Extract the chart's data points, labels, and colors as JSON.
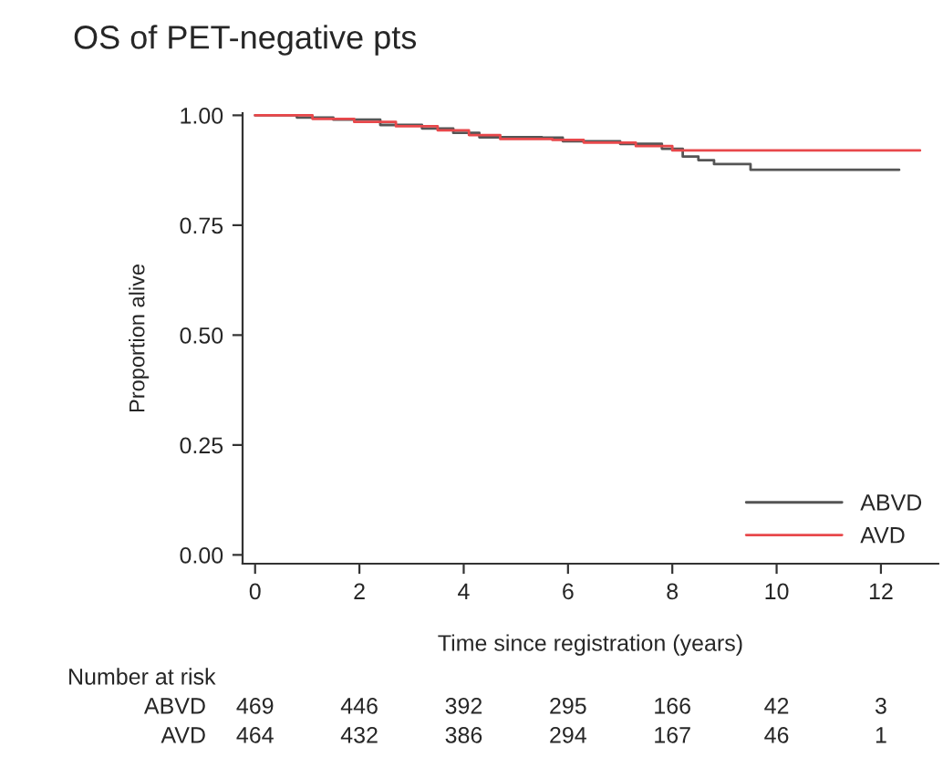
{
  "chart_data": {
    "type": "step",
    "title": "OS of PET-negative pts",
    "xlabel": "Time since registration (years)",
    "ylabel": "Proportion alive",
    "series": [
      {
        "name": "ABVD",
        "color": "#555555",
        "x": [
          0,
          0.8,
          1.5,
          2.4,
          3.2,
          3.8,
          4.3,
          5.5,
          5.9,
          7.0,
          7.8,
          8.2,
          8.5,
          8.8,
          9.5,
          12.35
        ],
        "values": [
          1.0,
          0.995,
          0.99,
          0.978,
          0.97,
          0.96,
          0.95,
          0.949,
          0.941,
          0.935,
          0.924,
          0.906,
          0.898,
          0.889,
          0.876,
          0.876
        ]
      },
      {
        "name": "AVD",
        "color": "#e8484b",
        "x": [
          0,
          1.1,
          1.9,
          2.7,
          3.5,
          4.1,
          4.7,
          5.7,
          6.3,
          7.3,
          8.0,
          12.75
        ],
        "values": [
          1.0,
          0.992,
          0.985,
          0.975,
          0.966,
          0.955,
          0.946,
          0.944,
          0.938,
          0.93,
          0.92,
          0.92
        ]
      }
    ],
    "xlim": [
      -0.24,
      13.1
    ],
    "ylim": [
      -0.02,
      1.005
    ],
    "xticks": [
      0,
      2,
      4,
      6,
      8,
      10,
      12
    ],
    "yticks": [
      {
        "value": 0,
        "label": "0.00"
      },
      {
        "value": 0.25,
        "label": "0.25"
      },
      {
        "value": 0.5,
        "label": "0.50"
      },
      {
        "value": 0.75,
        "label": "0.75"
      },
      {
        "value": 1,
        "label": "1.00"
      }
    ],
    "grid": false,
    "legend": "bottom right",
    "marker": "none",
    "line_style": "solid",
    "annotations": [
      "Number at risk",
      "ABVD",
      "469",
      "446",
      "392",
      "295",
      "166",
      "42",
      "3",
      "AVD",
      "464",
      "432",
      "386",
      "294",
      "167",
      "46",
      "1"
    ]
  }
}
